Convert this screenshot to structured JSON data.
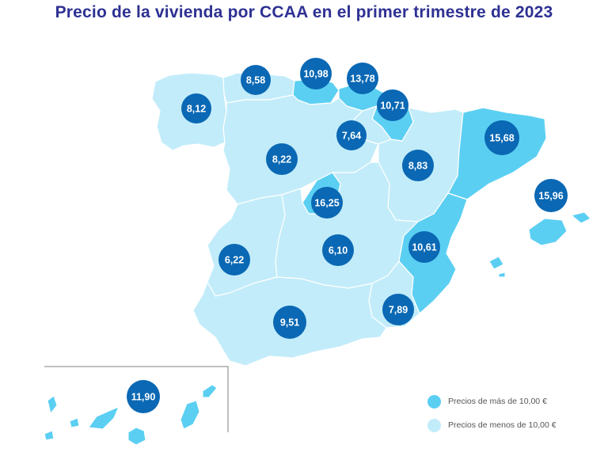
{
  "title": "Precio de la vivienda por CCAA en el primer trimestre de 2023",
  "colors": {
    "high": "#5bcff2",
    "low": "#c2ecfa",
    "border": "#ffffff",
    "bubble": "#0a68b4",
    "bubble_text": "#ffffff"
  },
  "legend": {
    "high_label": "Precios de más de 10,00 €",
    "low_label": "Precios de menos de 10,00 €"
  },
  "regions": [
    {
      "id": "galicia",
      "value": "8,12",
      "category": "low"
    },
    {
      "id": "asturias",
      "value": "8,58",
      "category": "low"
    },
    {
      "id": "cantabria",
      "value": "10,98",
      "category": "high"
    },
    {
      "id": "pais-vasco",
      "value": "13,78",
      "category": "high"
    },
    {
      "id": "navarra",
      "value": "10,71",
      "category": "high"
    },
    {
      "id": "la-rioja",
      "value": "7,64",
      "category": "low"
    },
    {
      "id": "castilla-y-leon",
      "value": "8,22",
      "category": "low"
    },
    {
      "id": "aragon",
      "value": "8,83",
      "category": "low"
    },
    {
      "id": "cataluna",
      "value": "15,68",
      "category": "high"
    },
    {
      "id": "baleares",
      "value": "15,96",
      "category": "high"
    },
    {
      "id": "madrid",
      "value": "16,25",
      "category": "high"
    },
    {
      "id": "extremadura",
      "value": "6,22",
      "category": "low"
    },
    {
      "id": "castilla-la-mancha",
      "value": "6,10",
      "category": "low"
    },
    {
      "id": "comunidad-valenciana",
      "value": "10,61",
      "category": "high"
    },
    {
      "id": "murcia",
      "value": "7,89",
      "category": "low"
    },
    {
      "id": "andalucia",
      "value": "9,51",
      "category": "low"
    },
    {
      "id": "canarias",
      "value": "11,90",
      "category": "high"
    }
  ]
}
